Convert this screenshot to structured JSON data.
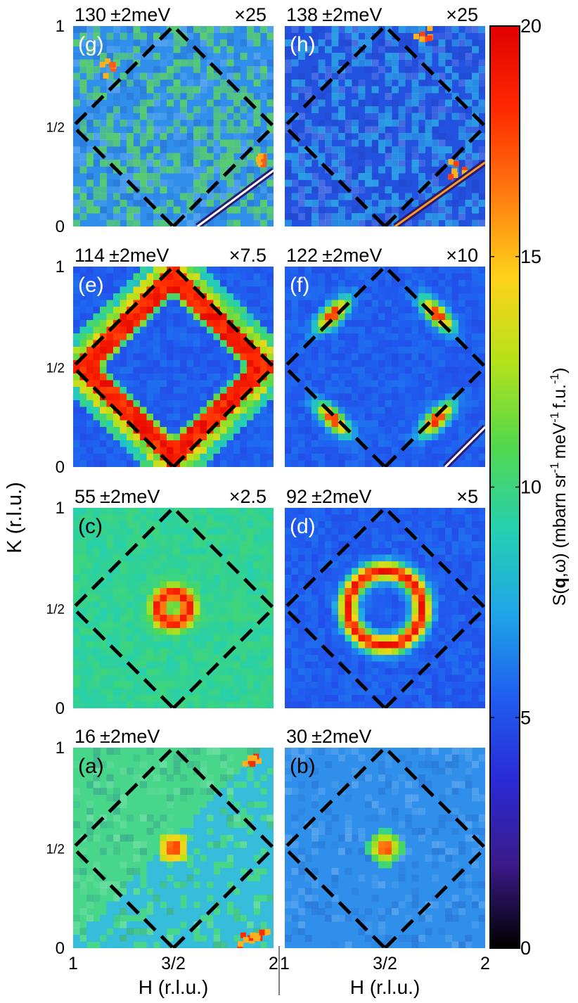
{
  "chart_data": {
    "type": "heatmap",
    "xlabel": "H (r.l.u.)",
    "ylabel": "K (r.l.u.)",
    "x_ticks": [
      "1",
      "3/2",
      "2"
    ],
    "y_ticks": [
      "0",
      "1/2",
      "1"
    ],
    "xlim": [
      1,
      2
    ],
    "ylim": [
      0,
      1
    ],
    "colorbar": {
      "label": "S(q,ω) (mbarn sr⁻¹ meV⁻¹ f.u.⁻¹)",
      "label_parts": {
        "prefix": "S(",
        "bold": "q",
        "middle": ",ω) (mbarn sr",
        "unit": "meV",
        "tail": "f.u.",
        "exponent": "-1"
      },
      "min": 0,
      "max": 20,
      "ticks": [
        "0",
        "5",
        "10",
        "15",
        "20"
      ],
      "colors": [
        "#000000",
        "#3b1a8a",
        "#2a2ad6",
        "#1f5ef0",
        "#1fa6e8",
        "#26d0b0",
        "#53d84c",
        "#b5e21a",
        "#ffd21a",
        "#ff7a10",
        "#ff2a00",
        "#e00000"
      ]
    },
    "boundary": {
      "style": "dashed black diamond",
      "vertices": [
        [
          1.5,
          0
        ],
        [
          2,
          0.5
        ],
        [
          1.5,
          1
        ],
        [
          1,
          0.5
        ]
      ]
    },
    "panels": [
      {
        "id": "g",
        "letter": "(g)",
        "energy": "130",
        "uncert": "±2meV",
        "scale": "×25",
        "background": "#2f8fea",
        "noise": 0.5,
        "letter_color": "#ffffff",
        "features": [
          {
            "type": "speckle",
            "color": "#5ed460",
            "amount": 0.35
          },
          {
            "type": "hotspots",
            "color": "#ff5a14",
            "points": [
              [
                1.15,
                0.8
              ],
              [
                1.9,
                0.35
              ]
            ]
          },
          {
            "type": "streak",
            "from": [
              1.62,
              0
            ],
            "to": [
              2,
              0.28
            ],
            "color": "#ffffff"
          }
        ]
      },
      {
        "id": "h",
        "letter": "(h)",
        "energy": "138",
        "uncert": "±2meV",
        "scale": "×25",
        "background": "#2452e0",
        "noise": 0.5,
        "letter_color": "#ffffff",
        "features": [
          {
            "type": "speckle",
            "color": "#2ea6e6",
            "amount": 0.3
          },
          {
            "type": "hotspots",
            "color": "#ff4010",
            "points": [
              [
                1.68,
                0.98
              ],
              [
                1.85,
                0.3
              ]
            ]
          },
          {
            "type": "streak",
            "from": [
              1.55,
              0
            ],
            "to": [
              2,
              0.32
            ],
            "color": "#ff9a20"
          }
        ]
      },
      {
        "id": "e",
        "letter": "(e)",
        "energy": "114",
        "uncert": "±2meV",
        "scale": "×7.5",
        "background": "#2438d8",
        "noise": 0.3,
        "letter_color": "#ffffff",
        "features": [
          {
            "type": "diamond",
            "center": [
              1.5,
              0.5
            ],
            "inner": 0.36,
            "outer": 0.58
          }
        ]
      },
      {
        "id": "f",
        "letter": "(f)",
        "energy": "122",
        "uncert": "±2meV",
        "scale": "×10",
        "background": "#2438d8",
        "noise": 0.3,
        "letter_color": "#ffffff",
        "features": [
          {
            "type": "blobs",
            "points": [
              [
                1.24,
                0.76
              ],
              [
                1.76,
                0.76
              ],
              [
                1.24,
                0.24
              ],
              [
                1.76,
                0.24
              ]
            ]
          },
          {
            "type": "streak",
            "from": [
              1.8,
              0
            ],
            "to": [
              2,
              0.2
            ],
            "color": "#ffffff"
          }
        ]
      },
      {
        "id": "c",
        "letter": "(c)",
        "energy": "55",
        "uncert": "±2meV",
        "scale": "×2.5",
        "background": "#33a8e8",
        "noise": 0.35,
        "letter_color": "#000000",
        "features": [
          {
            "type": "ring",
            "center": [
              1.5,
              0.5
            ],
            "radius": 0.075,
            "width": 0.05
          }
        ]
      },
      {
        "id": "d",
        "letter": "(d)",
        "energy": "92",
        "uncert": "±2meV",
        "scale": "×5",
        "background": "#2438d8",
        "noise": 0.3,
        "letter_color": "#ffffff",
        "features": [
          {
            "type": "ring",
            "center": [
              1.5,
              0.5
            ],
            "radius": 0.185,
            "width": 0.055
          }
        ]
      },
      {
        "id": "a",
        "letter": "(a)",
        "energy": "16",
        "uncert": "±2meV",
        "scale": "",
        "background": "#47d68a",
        "noise": 0.35,
        "letter_color": "#000000",
        "features": [
          {
            "type": "spot",
            "center": [
              1.5,
              0.5
            ],
            "radius": 0.055
          },
          {
            "type": "halfband",
            "color": "#34b8e6"
          },
          {
            "type": "hotspots",
            "color": "#ff2a00",
            "points": [
              [
                1.92,
                0.08
              ],
              [
                1.85,
                0.05
              ],
              [
                1.88,
                0.96
              ]
            ]
          }
        ]
      },
      {
        "id": "b",
        "letter": "(b)",
        "energy": "30",
        "uncert": "±2meV",
        "scale": "",
        "background": "#2f8fea",
        "noise": 0.3,
        "letter_color": "#000000",
        "features": [
          {
            "type": "spot",
            "center": [
              1.5,
              0.5
            ],
            "radius": 0.06
          }
        ]
      }
    ]
  }
}
